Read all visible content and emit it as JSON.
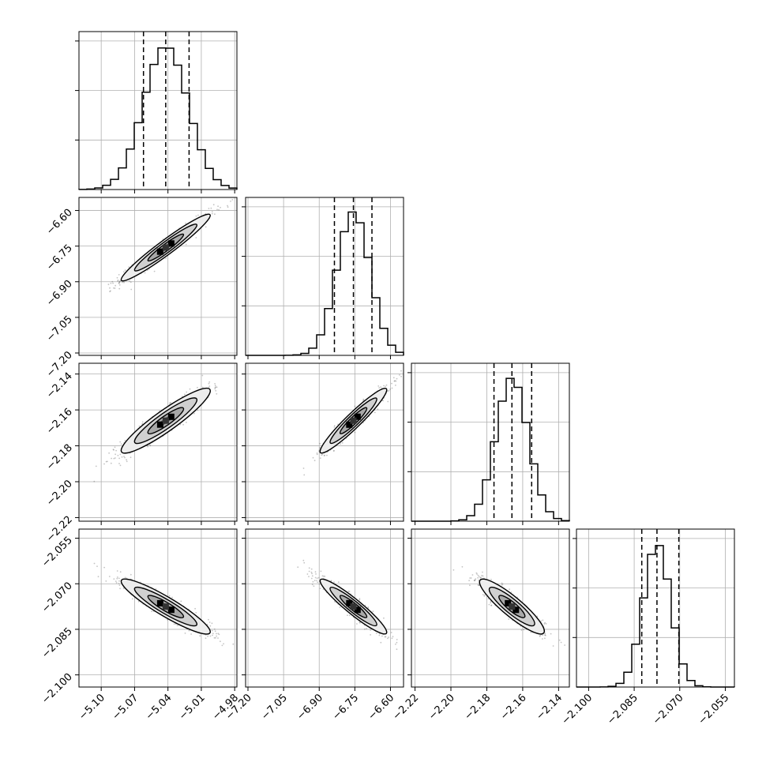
{
  "chart_data": {
    "type": "corner",
    "title": "",
    "grid": true,
    "parameters": [
      {
        "range": [
          -5.12,
          -4.978
        ],
        "ticks": [
          "-5.10",
          "-5.07",
          "-5.04",
          "-5.01",
          "-4.98"
        ],
        "tick_values": [
          -5.1,
          -5.07,
          -5.04,
          -5.01,
          -4.98
        ],
        "mean": -5.042,
        "std": 0.02,
        "quantiles": [
          -5.062,
          -5.042,
          -5.021
        ],
        "hist_peak": 1.0
      },
      {
        "range": [
          -7.21,
          -6.545
        ],
        "ticks": [
          "-7.20",
          "-7.05",
          "-6.90",
          "-6.75",
          "-6.60"
        ],
        "tick_values": [
          -7.2,
          -7.05,
          -6.9,
          -6.75,
          -6.6
        ],
        "mean": -6.756,
        "std": 0.07,
        "quantiles": [
          -6.836,
          -6.756,
          -6.678
        ],
        "hist_peak": 1.0
      },
      {
        "range": [
          -2.222,
          -2.134
        ],
        "ticks": [
          "-2.22",
          "-2.20",
          "-2.18",
          "-2.16",
          "-2.14"
        ],
        "tick_values": [
          -2.22,
          -2.2,
          -2.18,
          -2.16,
          -2.14
        ],
        "mean": -2.166,
        "std": 0.009,
        "quantiles": [
          -2.176,
          -2.166,
          -2.155
        ],
        "hist_peak": 1.0
      },
      {
        "range": [
          -2.104,
          -2.052
        ],
        "ticks": [
          "-2.100",
          "-2.085",
          "-2.070",
          "-2.055"
        ],
        "tick_values": [
          -2.1,
          -2.085,
          -2.07,
          -2.055
        ],
        "mean": -2.0775,
        "std": 0.0045,
        "quantiles": [
          -2.0825,
          -2.0775,
          -2.0703
        ],
        "hist_peak": 1.0
      }
    ],
    "correlations": [
      [
        1,
        0.97,
        0.93,
        -0.93
      ],
      [
        0.97,
        1,
        0.96,
        -0.95
      ],
      [
        0.93,
        0.96,
        1,
        -0.91
      ],
      [
        -0.93,
        -0.95,
        -0.91,
        1
      ]
    ],
    "style": {
      "line_color": "#000000",
      "grid_color": "#b0b0b0",
      "point_color": "#555555",
      "contour_fill": "#dcdcdc"
    }
  }
}
